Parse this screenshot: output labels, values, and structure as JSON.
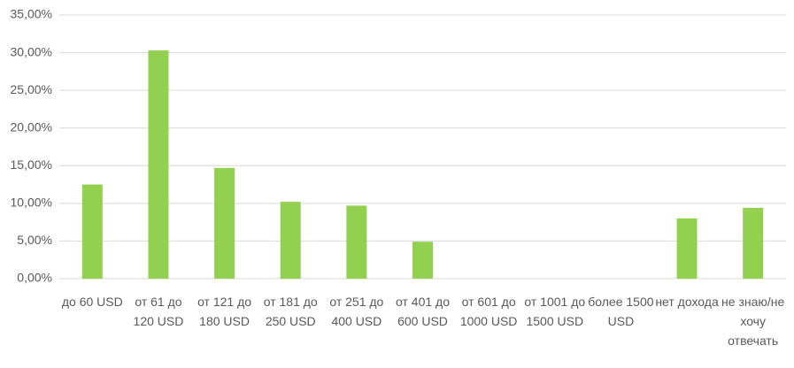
{
  "chart_data": {
    "type": "bar",
    "categories": [
      "до 60 USD",
      "от 61 до 120 USD",
      "от 121 до 180 USD",
      "от 181 до 250 USD",
      "от 251 до 400 USD",
      "от 401 до 600 USD",
      "от 601 до 1000 USD",
      "от 1001 до 1500 USD",
      "более 1500 USD",
      "нет дохода",
      "не знаю/не хочу отвечать"
    ],
    "values": [
      12.5,
      30.3,
      14.7,
      10.2,
      9.7,
      4.9,
      0,
      0,
      0,
      8.0,
      9.4
    ],
    "color": "#92d050",
    "ylim": [
      0,
      35
    ],
    "yticks": [
      {
        "value": 0,
        "label": "0,00%"
      },
      {
        "value": 5,
        "label": "5,00%"
      },
      {
        "value": 10,
        "label": "10,00%"
      },
      {
        "value": 15,
        "label": "15,00%"
      },
      {
        "value": 20,
        "label": "20,00%"
      },
      {
        "value": 25,
        "label": "25,00%"
      },
      {
        "value": 30,
        "label": "30,00%"
      },
      {
        "value": 35,
        "label": "35,00%"
      }
    ],
    "grid": true
  }
}
